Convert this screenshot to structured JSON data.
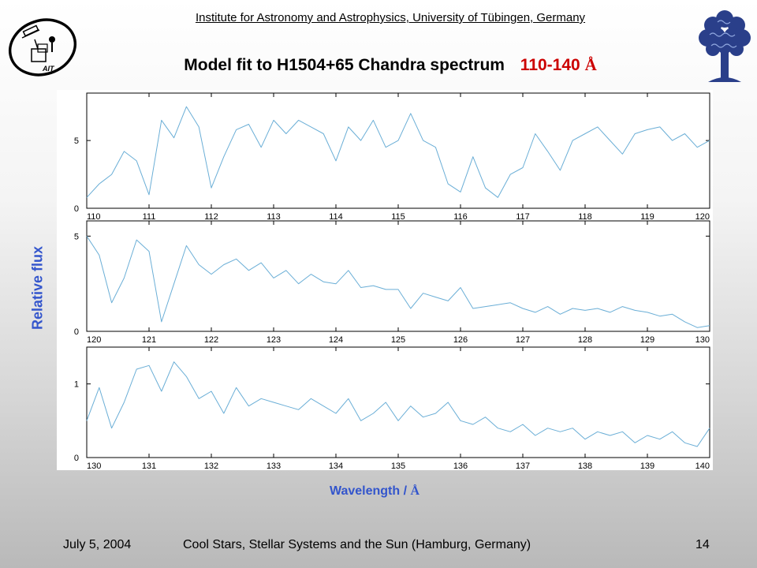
{
  "header": {
    "institute": "Institute for Astronomy and Astrophysics, University of Tübingen, Germany",
    "title": "Model fit to H1504+65 Chandra spectrum",
    "title_range": "110-140",
    "title_unit": "Å"
  },
  "logos": {
    "left_text": "AIT"
  },
  "footer": {
    "date": "July 5, 2004",
    "conference": "Cool Stars, Stellar Systems and the Sun (Hamburg, Germany)",
    "page": "14"
  },
  "axis_labels": {
    "ylabel": "Relative flux",
    "xlabel": "Wavelength /",
    "xlabel_unit": "Å"
  },
  "chart_data": [
    {
      "type": "line",
      "xlim": [
        110,
        120
      ],
      "ylim": [
        0,
        8.5
      ],
      "xticks": [
        "110",
        "111",
        "112",
        "113",
        "114",
        "115",
        "116",
        "117",
        "118",
        "119",
        "120"
      ],
      "yticks": [
        "0",
        "5"
      ],
      "grid": false,
      "color": "#6aaed6",
      "series": [
        {
          "x": [
            110.0,
            110.2,
            110.4,
            110.6,
            110.8,
            111.0,
            111.2,
            111.4,
            111.6,
            111.8,
            112.0,
            112.2,
            112.4,
            112.6,
            112.8,
            113.0,
            113.2,
            113.4,
            113.6,
            113.8,
            114.0,
            114.2,
            114.4,
            114.6,
            114.8,
            115.0,
            115.2,
            115.4,
            115.6,
            115.8,
            116.0,
            116.2,
            116.4,
            116.6,
            116.8,
            117.0,
            117.2,
            117.4,
            117.6,
            117.8,
            118.0,
            118.2,
            118.4,
            118.6,
            118.8,
            119.0,
            119.2,
            119.4,
            119.6,
            119.8,
            120.0
          ],
          "y": [
            0.8,
            1.8,
            2.5,
            4.2,
            3.5,
            1.0,
            6.5,
            5.2,
            7.5,
            6.0,
            1.5,
            3.8,
            5.8,
            6.2,
            4.5,
            6.5,
            5.5,
            6.5,
            6.0,
            5.5,
            3.5,
            6.0,
            5.0,
            6.5,
            4.5,
            5.0,
            7.0,
            5.0,
            4.5,
            1.8,
            1.2,
            3.8,
            1.5,
            0.8,
            2.5,
            3.0,
            5.5,
            4.2,
            2.8,
            5.0,
            5.5,
            6.0,
            5.0,
            4.0,
            5.5,
            5.8,
            6.0,
            5.0,
            5.5,
            4.5,
            5.0
          ]
        }
      ]
    },
    {
      "type": "line",
      "xlim": [
        120,
        130
      ],
      "ylim": [
        0,
        5.8
      ],
      "xticks": [
        "120",
        "121",
        "122",
        "123",
        "124",
        "125",
        "126",
        "127",
        "128",
        "129",
        "130"
      ],
      "yticks": [
        "0",
        "5"
      ],
      "grid": false,
      "color": "#6aaed6",
      "series": [
        {
          "x": [
            120.0,
            120.2,
            120.4,
            120.6,
            120.8,
            121.0,
            121.2,
            121.4,
            121.6,
            121.8,
            122.0,
            122.2,
            122.4,
            122.6,
            122.8,
            123.0,
            123.2,
            123.4,
            123.6,
            123.8,
            124.0,
            124.2,
            124.4,
            124.6,
            124.8,
            125.0,
            125.2,
            125.4,
            125.6,
            125.8,
            126.0,
            126.2,
            126.4,
            126.6,
            126.8,
            127.0,
            127.2,
            127.4,
            127.6,
            127.8,
            128.0,
            128.2,
            128.4,
            128.6,
            128.8,
            129.0,
            129.2,
            129.4,
            129.6,
            129.8,
            130.0
          ],
          "y": [
            5.0,
            4.0,
            1.5,
            2.8,
            4.8,
            4.2,
            0.5,
            2.5,
            4.5,
            3.5,
            3.0,
            3.5,
            3.8,
            3.2,
            3.6,
            2.8,
            3.2,
            2.5,
            3.0,
            2.6,
            2.5,
            3.2,
            2.3,
            2.4,
            2.2,
            2.2,
            1.2,
            2.0,
            1.8,
            1.6,
            2.3,
            1.2,
            1.3,
            1.4,
            1.5,
            1.2,
            1.0,
            1.3,
            0.9,
            1.2,
            1.1,
            1.2,
            1.0,
            1.3,
            1.1,
            1.0,
            0.8,
            0.9,
            0.5,
            0.2,
            0.3
          ]
        }
      ]
    },
    {
      "type": "line",
      "xlim": [
        130,
        140
      ],
      "ylim": [
        0,
        1.5
      ],
      "xticks": [
        "130",
        "131",
        "132",
        "133",
        "134",
        "135",
        "136",
        "137",
        "138",
        "139",
        "140"
      ],
      "yticks": [
        "0",
        "1"
      ],
      "grid": false,
      "color": "#6aaed6",
      "series": [
        {
          "x": [
            130.0,
            130.2,
            130.4,
            130.6,
            130.8,
            131.0,
            131.2,
            131.4,
            131.6,
            131.8,
            132.0,
            132.2,
            132.4,
            132.6,
            132.8,
            133.0,
            133.2,
            133.4,
            133.6,
            133.8,
            134.0,
            134.2,
            134.4,
            134.6,
            134.8,
            135.0,
            135.2,
            135.4,
            135.6,
            135.8,
            136.0,
            136.2,
            136.4,
            136.6,
            136.8,
            137.0,
            137.2,
            137.4,
            137.6,
            137.8,
            138.0,
            138.2,
            138.4,
            138.6,
            138.8,
            139.0,
            139.2,
            139.4,
            139.6,
            139.8,
            140.0
          ],
          "y": [
            0.5,
            0.95,
            0.4,
            0.75,
            1.2,
            1.25,
            0.9,
            1.3,
            1.1,
            0.8,
            0.9,
            0.6,
            0.95,
            0.7,
            0.8,
            0.75,
            0.7,
            0.65,
            0.8,
            0.7,
            0.6,
            0.8,
            0.5,
            0.6,
            0.75,
            0.5,
            0.7,
            0.55,
            0.6,
            0.75,
            0.5,
            0.45,
            0.55,
            0.4,
            0.35,
            0.45,
            0.3,
            0.4,
            0.35,
            0.4,
            0.25,
            0.35,
            0.3,
            0.35,
            0.2,
            0.3,
            0.25,
            0.35,
            0.2,
            0.15,
            0.4
          ]
        }
      ]
    }
  ]
}
